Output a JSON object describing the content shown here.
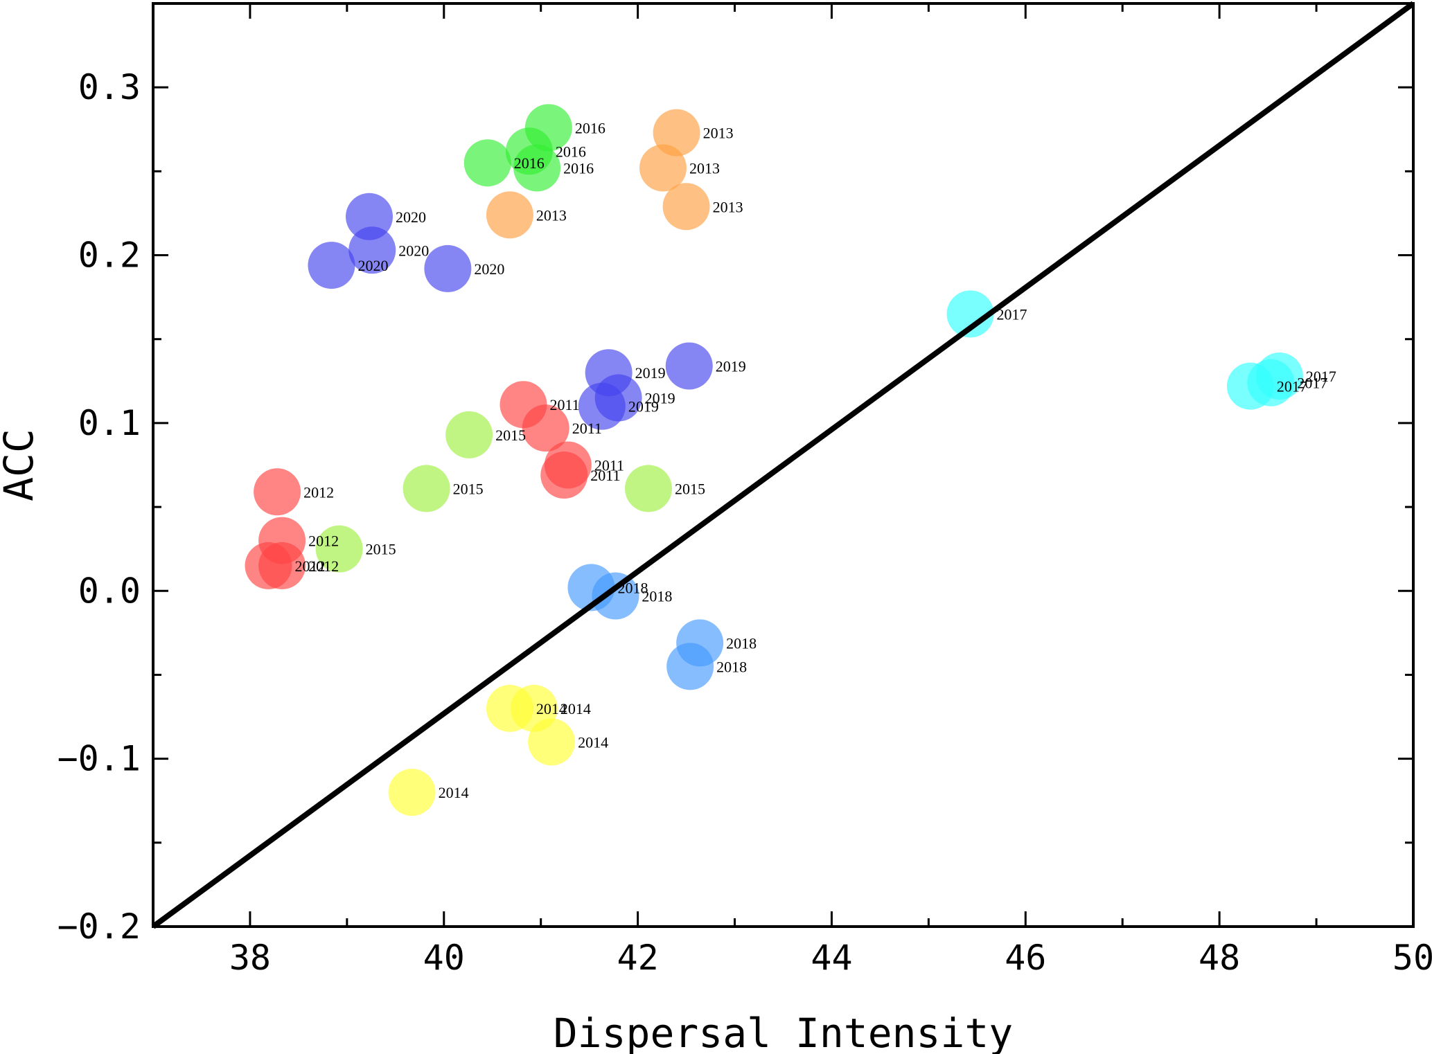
{
  "chart_data": {
    "type": "scatter",
    "title": "",
    "xlabel": "Dispersal Intensity",
    "ylabel": "ACC",
    "xlim": [
      37,
      50
    ],
    "ylim": [
      -0.2,
      0.35
    ],
    "xticks": [
      {
        "value": 38,
        "label": "38"
      },
      {
        "value": 40,
        "label": "40"
      },
      {
        "value": 42,
        "label": "42"
      },
      {
        "value": 44,
        "label": "44"
      },
      {
        "value": 46,
        "label": "46"
      },
      {
        "value": 48,
        "label": "48"
      },
      {
        "value": 50,
        "label": "50"
      }
    ],
    "yticks": [
      {
        "value": -0.2,
        "label": "−0.2"
      },
      {
        "value": -0.1,
        "label": "−0.1"
      },
      {
        "value": 0.0,
        "label": "0.0"
      },
      {
        "value": 0.1,
        "label": "0.1"
      },
      {
        "value": 0.2,
        "label": "0.2"
      },
      {
        "value": 0.3,
        "label": "0.3"
      }
    ],
    "x_minor_step": 1,
    "y_minor_step": 0.05,
    "grid": false,
    "legend": "none",
    "reference_line": {
      "x": [
        37,
        50
      ],
      "y": [
        -0.2,
        0.35
      ],
      "color": "#000000"
    },
    "series": [
      {
        "color": "#ff4444",
        "points": [
          {
            "x": 40.82,
            "y": 0.111,
            "label": "2011"
          },
          {
            "x": 41.05,
            "y": 0.097,
            "label": "2011"
          },
          {
            "x": 41.28,
            "y": 0.075,
            "label": "2011"
          },
          {
            "x": 41.24,
            "y": 0.069,
            "label": "2011"
          }
        ]
      },
      {
        "color": "#ff4444",
        "points": [
          {
            "x": 38.28,
            "y": 0.059,
            "label": "2012"
          },
          {
            "x": 38.33,
            "y": 0.03,
            "label": "2012"
          },
          {
            "x": 38.33,
            "y": 0.015,
            "label": "2012"
          },
          {
            "x": 38.19,
            "y": 0.015,
            "label": "2012"
          }
        ]
      },
      {
        "color": "#ffa040",
        "points": [
          {
            "x": 42.4,
            "y": 0.273,
            "label": "2013"
          },
          {
            "x": 42.26,
            "y": 0.252,
            "label": "2013"
          },
          {
            "x": 42.5,
            "y": 0.229,
            "label": "2013"
          },
          {
            "x": 40.68,
            "y": 0.224,
            "label": "2013"
          }
        ]
      },
      {
        "color": "#ffff33",
        "points": [
          {
            "x": 40.68,
            "y": -0.07,
            "label": "2014"
          },
          {
            "x": 40.93,
            "y": -0.07,
            "label": "2014"
          },
          {
            "x": 41.11,
            "y": -0.09,
            "label": "2014"
          },
          {
            "x": 39.67,
            "y": -0.12,
            "label": "2014"
          }
        ]
      },
      {
        "color": "#a0f040",
        "points": [
          {
            "x": 40.26,
            "y": 0.093,
            "label": "2015"
          },
          {
            "x": 39.82,
            "y": 0.061,
            "label": "2015"
          },
          {
            "x": 42.11,
            "y": 0.061,
            "label": "2015"
          },
          {
            "x": 38.92,
            "y": 0.025,
            "label": "2015"
          }
        ]
      },
      {
        "color": "#33ee33",
        "points": [
          {
            "x": 41.08,
            "y": 0.276,
            "label": "2016"
          },
          {
            "x": 40.88,
            "y": 0.262,
            "label": "2016"
          },
          {
            "x": 40.96,
            "y": 0.252,
            "label": "2016"
          },
          {
            "x": 40.45,
            "y": 0.255,
            "label": "2016"
          }
        ]
      },
      {
        "color": "#33ffff",
        "points": [
          {
            "x": 45.43,
            "y": 0.165,
            "label": "2017"
          },
          {
            "x": 48.62,
            "y": 0.128,
            "label": "2017"
          },
          {
            "x": 48.53,
            "y": 0.124,
            "label": "2017"
          },
          {
            "x": 48.32,
            "y": 0.122,
            "label": "2017"
          }
        ]
      },
      {
        "color": "#4499ff",
        "points": [
          {
            "x": 41.52,
            "y": 0.002,
            "label": "2018"
          },
          {
            "x": 41.77,
            "y": -0.003,
            "label": "2018"
          },
          {
            "x": 42.64,
            "y": -0.031,
            "label": "2018"
          },
          {
            "x": 42.54,
            "y": -0.045,
            "label": "2018"
          }
        ]
      },
      {
        "color": "#4444ee",
        "points": [
          {
            "x": 41.7,
            "y": 0.13,
            "label": "2019"
          },
          {
            "x": 42.53,
            "y": 0.134,
            "label": "2019"
          },
          {
            "x": 41.8,
            "y": 0.115,
            "label": "2019"
          },
          {
            "x": 41.63,
            "y": 0.11,
            "label": "2019"
          }
        ]
      },
      {
        "color": "#4444ee",
        "points": [
          {
            "x": 39.23,
            "y": 0.223,
            "label": "2020"
          },
          {
            "x": 39.26,
            "y": 0.203,
            "label": "2020"
          },
          {
            "x": 38.84,
            "y": 0.194,
            "label": "2020"
          },
          {
            "x": 40.04,
            "y": 0.192,
            "label": "2020"
          }
        ]
      }
    ]
  }
}
